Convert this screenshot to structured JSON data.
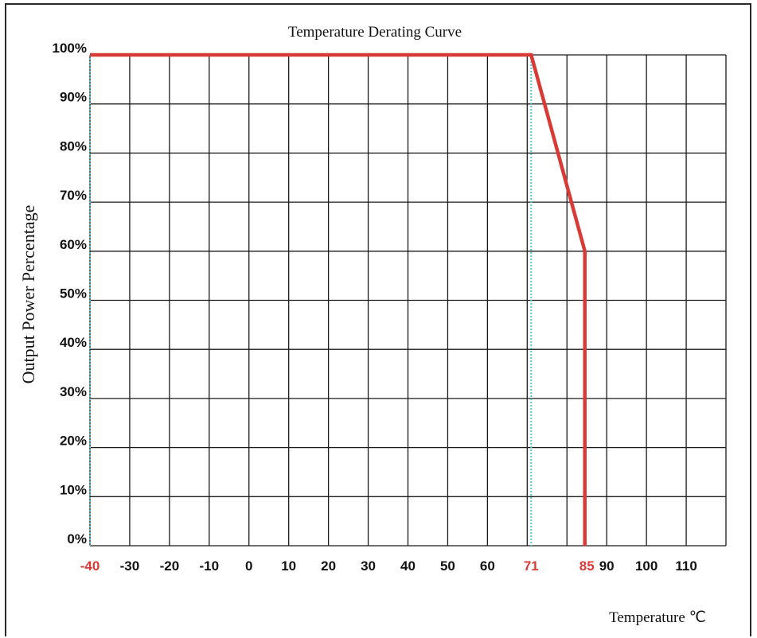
{
  "chart_data": {
    "type": "line",
    "title": "Temperature Derating Curve",
    "ylabel": "Output Power Percentage",
    "xlabel": "Temperature ℃",
    "grid": true,
    "x_ticks": [
      "-30",
      "-20",
      "-10",
      "0",
      "10",
      "20",
      "30",
      "40",
      "50",
      "60",
      "90",
      "100",
      "110"
    ],
    "x_ticks_values": [
      -30,
      -20,
      -10,
      0,
      10,
      20,
      30,
      40,
      50,
      60,
      90,
      100,
      110
    ],
    "x_highlight_ticks": [
      "-40",
      "71",
      "85"
    ],
    "x_highlight_values": [
      -40,
      71,
      85
    ],
    "y_ticks": [
      "0%",
      "10%",
      "20%",
      "30%",
      "40%",
      "50%",
      "60%",
      "70%",
      "80%",
      "90%",
      "100%"
    ],
    "y_ticks_values": [
      0,
      10,
      20,
      30,
      40,
      50,
      60,
      70,
      80,
      90,
      100
    ],
    "xlim": [
      -40,
      120
    ],
    "ylim": [
      0,
      100
    ],
    "series": [
      {
        "x": [
          -40,
          71,
          84.5,
          84.5
        ],
        "y": [
          100,
          100,
          60,
          0
        ]
      }
    ],
    "reference_lines_x": [
      -40,
      71
    ],
    "colors": {
      "curve": "#d93a35",
      "reference": "#5bbfd6",
      "grid": "#1a1a1a",
      "highlight_tick": "#d93a35"
    }
  }
}
